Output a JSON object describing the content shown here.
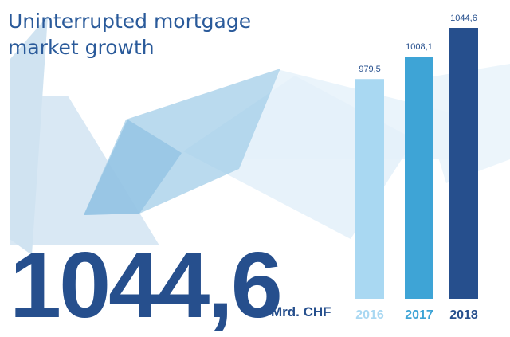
{
  "title": {
    "line1": "Uninterrupted mortgage",
    "line2": "market growth"
  },
  "headline": {
    "value": "1044,6",
    "unit": "Mrd. CHF"
  },
  "colors": {
    "title": "#2a5a9a",
    "headline": "#264f8d",
    "value_labels": "#264f8d",
    "bar_2016": "#a9d8f2",
    "bar_2017": "#3ea4d6",
    "bar_2018": "#264f8d"
  },
  "chart_data": {
    "type": "bar",
    "categories": [
      "2016",
      "2017",
      "2018"
    ],
    "values": [
      979.5,
      1008.1,
      1044.6
    ],
    "value_labels": [
      "979,5",
      "1008,1",
      "1044,6"
    ],
    "category_colors": [
      "#a9d8f2",
      "#3ea4d6",
      "#264f8d"
    ],
    "ylim": [
      0,
      1044.6
    ],
    "grid": false,
    "title": "",
    "xlabel": "",
    "ylabel": ""
  }
}
